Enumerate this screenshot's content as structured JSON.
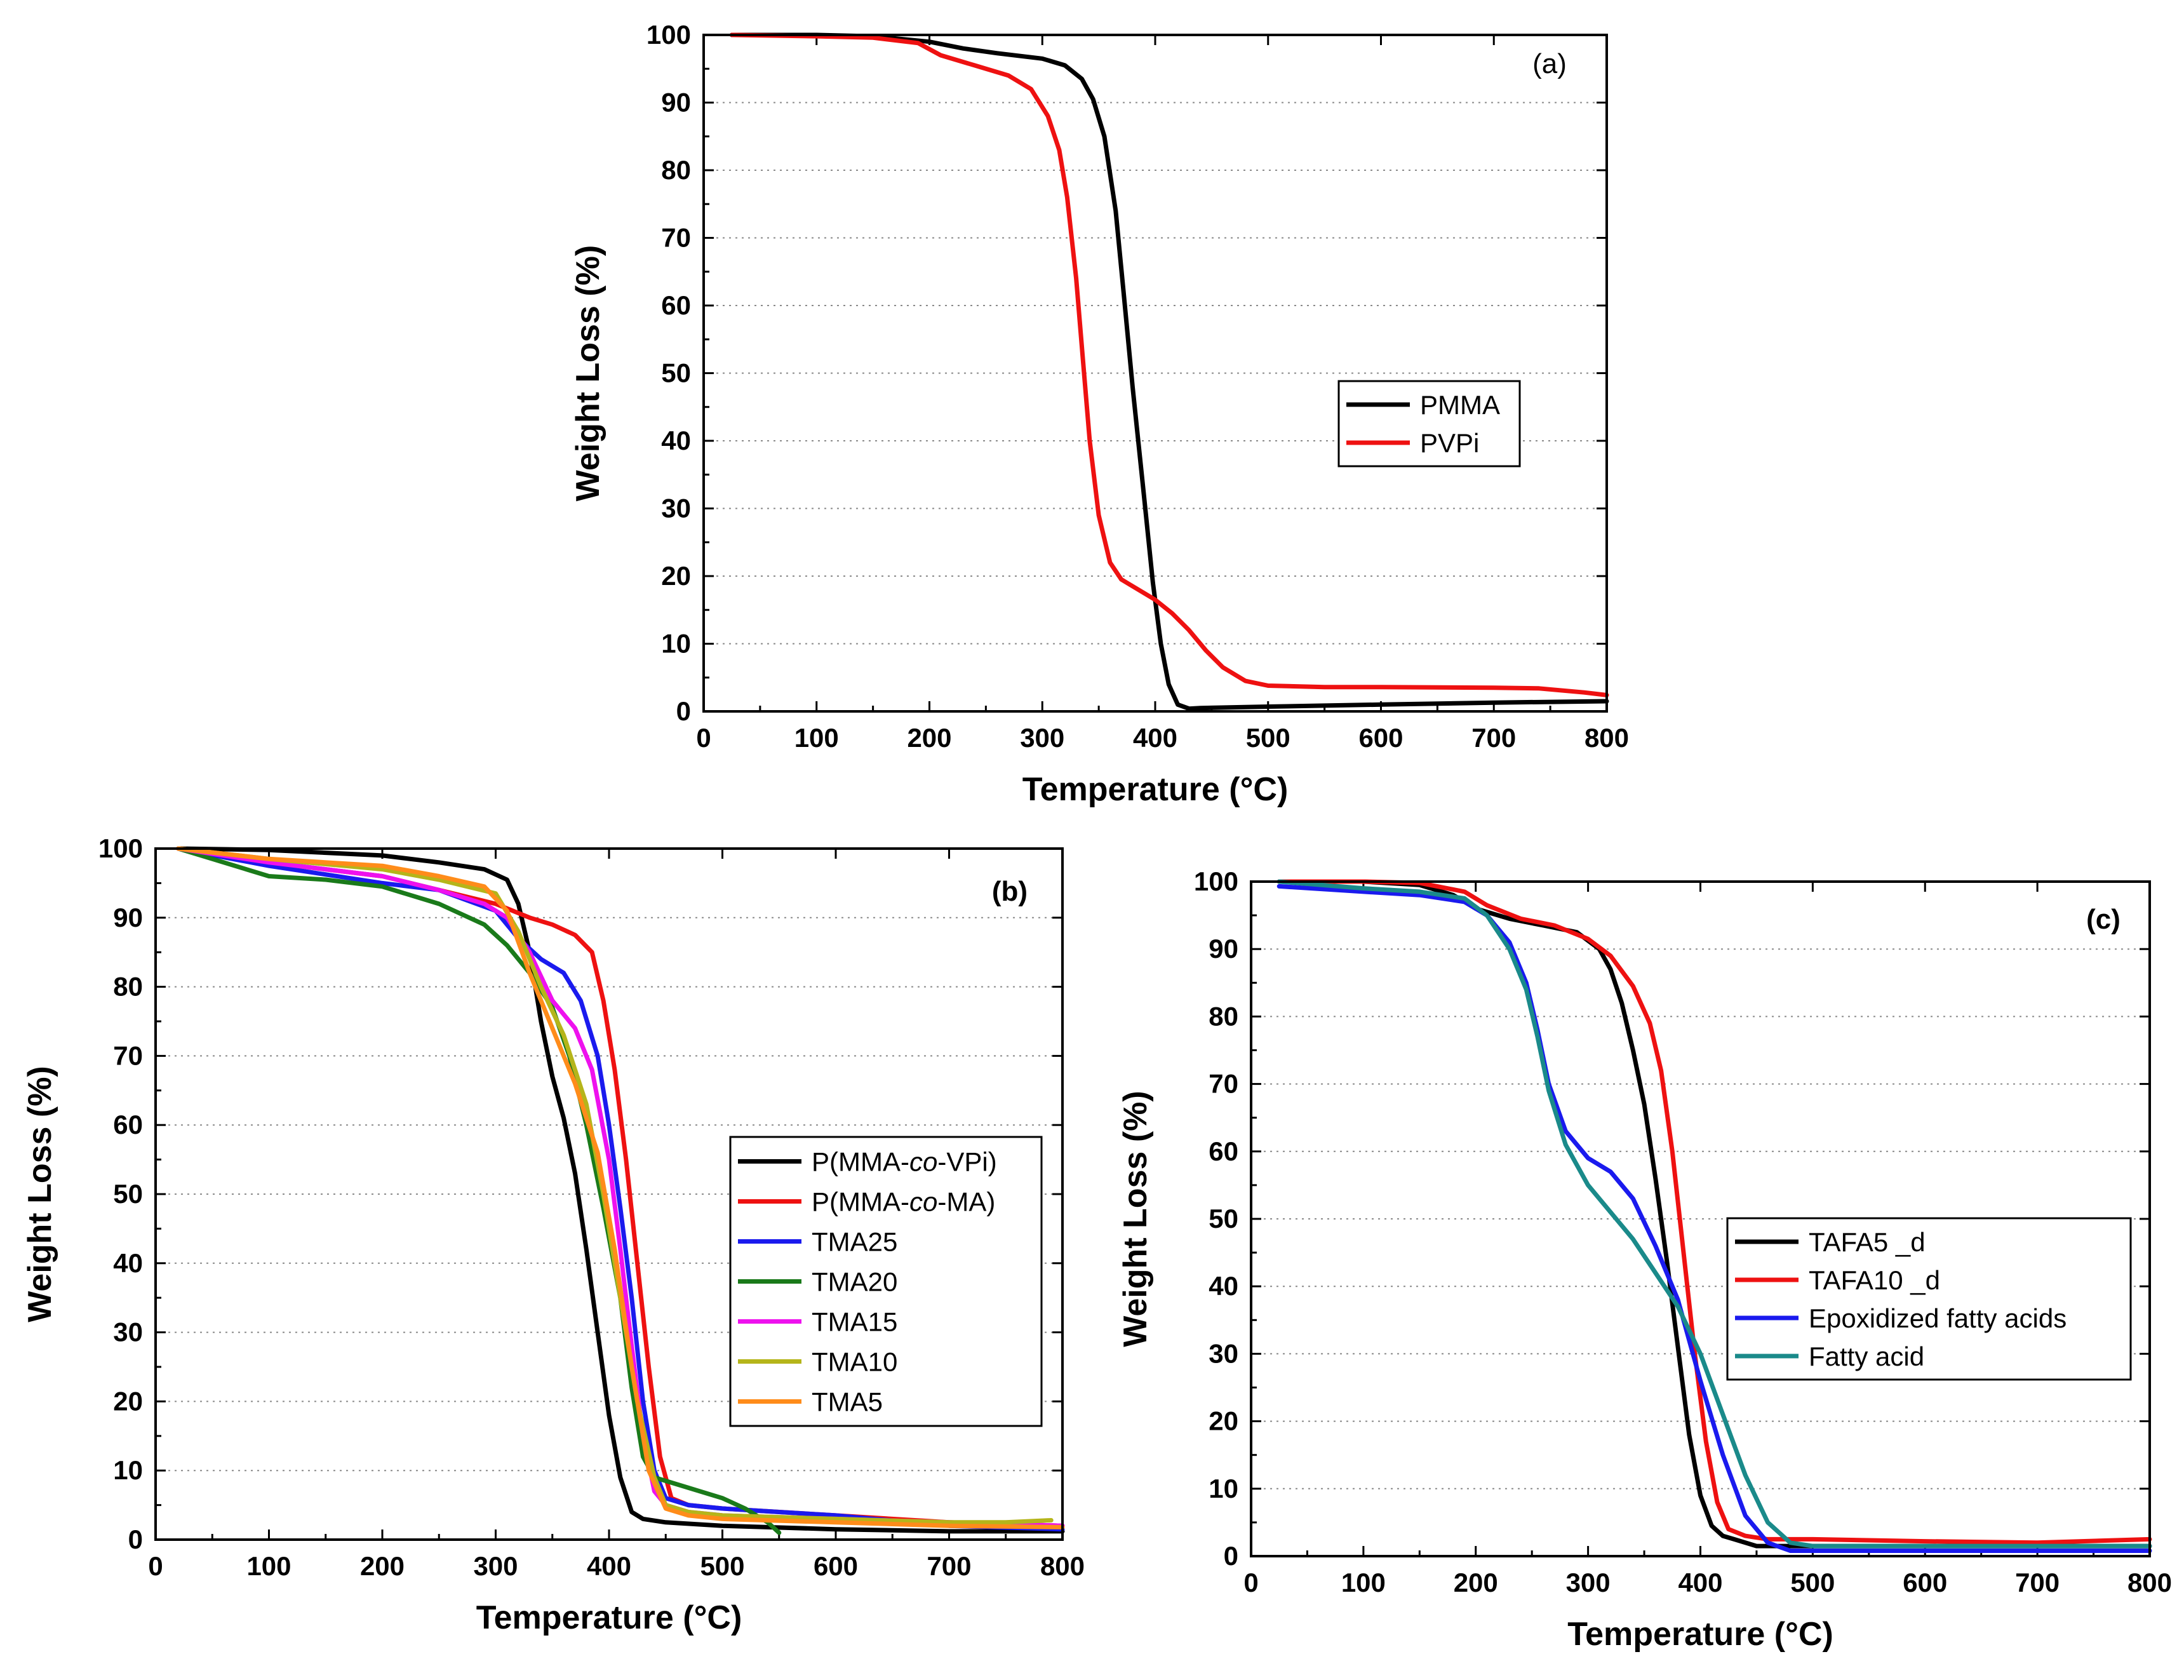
{
  "chart_data": [
    {
      "id": "a",
      "type": "line",
      "panel_label": "(a)",
      "xlabel": "Temperature (°C)",
      "ylabel": "Weight Loss (%)",
      "xlim": [
        0,
        800
      ],
      "ylim": [
        0,
        100
      ],
      "xticks": [
        0,
        100,
        200,
        300,
        400,
        500,
        600,
        700,
        800
      ],
      "yticks": [
        0,
        10,
        20,
        30,
        40,
        50,
        60,
        70,
        80,
        90,
        100
      ],
      "grid": "horizontal dotted",
      "legend_position": "right-middle",
      "series": [
        {
          "name": "PMMA",
          "color": "#000000",
          "x": [
            25,
            100,
            150,
            200,
            230,
            260,
            300,
            320,
            335,
            345,
            355,
            365,
            372,
            380,
            390,
            398,
            405,
            412,
            420,
            430,
            440,
            500,
            600,
            700,
            800
          ],
          "y": [
            100,
            100,
            99.8,
            99,
            98,
            97.3,
            96.5,
            95.5,
            93.5,
            90.5,
            85,
            74,
            62,
            48,
            32,
            19,
            10,
            4,
            1,
            0.4,
            0.5,
            0.7,
            1,
            1.3,
            1.5
          ]
        },
        {
          "name": "PVPi",
          "color": "#ee1111",
          "x": [
            25,
            100,
            150,
            190,
            210,
            240,
            270,
            290,
            305,
            315,
            322,
            330,
            336,
            342,
            350,
            360,
            370,
            385,
            400,
            415,
            430,
            445,
            460,
            480,
            500,
            550,
            600,
            700,
            740,
            780,
            800
          ],
          "y": [
            100,
            99.8,
            99.6,
            98.8,
            97,
            95.5,
            94,
            92,
            88,
            83,
            76,
            64,
            52,
            40,
            29,
            22,
            19.5,
            18,
            16.5,
            14.5,
            12,
            9,
            6.5,
            4.5,
            3.8,
            3.6,
            3.6,
            3.5,
            3.4,
            2.8,
            2.4
          ]
        }
      ]
    },
    {
      "id": "b",
      "type": "line",
      "panel_label": "(b)",
      "xlabel": "Temperature (°C)",
      "ylabel": "Weight Loss (%)",
      "xlim": [
        0,
        800
      ],
      "ylim": [
        0,
        100
      ],
      "xticks": [
        0,
        100,
        200,
        300,
        400,
        500,
        600,
        700,
        800
      ],
      "yticks": [
        0,
        10,
        20,
        30,
        40,
        50,
        60,
        70,
        80,
        90,
        100
      ],
      "grid": "horizontal dotted",
      "legend_position": "right-middle",
      "series": [
        {
          "name_parts": [
            "P(MMA-",
            "co",
            "-VPi)"
          ],
          "color": "#000000",
          "x": [
            20,
            100,
            200,
            250,
            290,
            310,
            320,
            330,
            340,
            350,
            360,
            370,
            380,
            390,
            400,
            410,
            420,
            430,
            450,
            500,
            600,
            700,
            800
          ],
          "y": [
            100,
            99.8,
            99,
            98,
            97,
            95.5,
            92,
            85,
            75,
            67,
            61,
            53,
            42,
            30,
            18,
            9,
            4,
            3,
            2.5,
            2,
            1.5,
            1.2,
            1.2
          ]
        },
        {
          "name_parts": [
            "P(MMA-",
            "co",
            "-MA)"
          ],
          "color": "#ee1111",
          "x": [
            20,
            100,
            200,
            250,
            300,
            330,
            350,
            370,
            385,
            395,
            405,
            415,
            425,
            435,
            445,
            455,
            470,
            500,
            600,
            700,
            800
          ],
          "y": [
            100,
            98,
            96,
            94,
            92,
            90,
            89,
            87.5,
            85,
            78,
            68,
            55,
            40,
            25,
            12,
            6,
            5,
            4.5,
            3.5,
            2.5,
            2
          ]
        },
        {
          "name": "TMA25",
          "color": "#1a1aee",
          "x": [
            20,
            100,
            200,
            250,
            300,
            320,
            340,
            360,
            375,
            390,
            400,
            410,
            420,
            430,
            440,
            450,
            470,
            500,
            550,
            600,
            700,
            800
          ],
          "y": [
            100,
            97.5,
            95,
            94,
            91,
            87,
            84,
            82,
            78,
            70,
            60,
            48,
            35,
            20,
            10,
            6,
            5,
            4.5,
            4,
            3.5,
            2,
            1.5
          ]
        },
        {
          "name": "TMA20",
          "color": "#1a7a1a",
          "x": [
            20,
            50,
            80,
            100,
            150,
            200,
            250,
            290,
            310,
            330,
            350,
            365,
            380,
            395,
            410,
            420,
            430,
            440,
            450,
            470,
            500,
            520,
            540,
            550
          ],
          "y": [
            100,
            98.5,
            97,
            96,
            95.5,
            94.5,
            92,
            89,
            86,
            82,
            77,
            70,
            60,
            48,
            35,
            22,
            12,
            9,
            8.5,
            7.5,
            6,
            4.5,
            2.5,
            1
          ]
        },
        {
          "name": "TMA15",
          "color": "#ee11ee",
          "x": [
            20,
            100,
            200,
            250,
            290,
            310,
            330,
            350,
            370,
            385,
            400,
            410,
            420,
            430,
            440,
            450,
            470,
            500,
            600,
            700,
            800
          ],
          "y": [
            100,
            98,
            96,
            94,
            92,
            90,
            85,
            78,
            74,
            68,
            55,
            42,
            28,
            15,
            7,
            5,
            4,
            3.5,
            3,
            2.5,
            2
          ]
        },
        {
          "name": "TMA10",
          "color": "#b5b51a",
          "x": [
            20,
            100,
            200,
            250,
            300,
            320,
            340,
            360,
            380,
            395,
            410,
            425,
            440,
            450,
            470,
            500,
            600,
            700,
            750,
            790
          ],
          "y": [
            100,
            98.5,
            97,
            95.5,
            93.5,
            88,
            80,
            73,
            63,
            50,
            35,
            20,
            9,
            5,
            4,
            3.5,
            3,
            2.5,
            2.5,
            2.8
          ]
        },
        {
          "name": "TMA5",
          "color": "#ff8c1a",
          "x": [
            20,
            100,
            200,
            250,
            290,
            310,
            330,
            350,
            370,
            390,
            405,
            420,
            435,
            450,
            470,
            500,
            600,
            700,
            800
          ],
          "y": [
            100,
            98.5,
            97.5,
            96,
            94.5,
            91,
            82,
            74,
            66,
            56,
            42,
            25,
            10,
            4.5,
            3.5,
            3,
            2.5,
            2,
            1.8
          ]
        }
      ]
    },
    {
      "id": "c",
      "type": "line",
      "panel_label": "(c)",
      "xlabel": "Temperature (°C)",
      "ylabel": "Weight Loss (%)",
      "xlim": [
        0,
        800
      ],
      "ylim": [
        0,
        100
      ],
      "xticks": [
        0,
        100,
        200,
        300,
        400,
        500,
        600,
        700,
        800
      ],
      "yticks": [
        0,
        10,
        20,
        30,
        40,
        50,
        60,
        70,
        80,
        90,
        100
      ],
      "grid": "horizontal dotted",
      "legend_position": "right-middle",
      "series": [
        {
          "name": "TAFA5 _d",
          "color": "#000000",
          "x": [
            25,
            100,
            150,
            180,
            200,
            230,
            260,
            290,
            310,
            320,
            330,
            340,
            350,
            360,
            370,
            380,
            390,
            400,
            410,
            420,
            430,
            450,
            500,
            600,
            700,
            800
          ],
          "y": [
            100,
            100,
            99.5,
            98,
            96,
            94.5,
            93.5,
            92.5,
            90,
            87,
            82,
            75,
            67,
            56,
            44,
            31,
            18,
            9,
            4.5,
            3,
            2.5,
            1.5,
            1.5,
            1.5,
            1.5,
            1.5
          ]
        },
        {
          "name": "TAFA10 _d",
          "color": "#ee1111",
          "x": [
            25,
            100,
            150,
            190,
            210,
            240,
            270,
            300,
            320,
            340,
            355,
            365,
            375,
            385,
            395,
            405,
            415,
            425,
            440,
            460,
            500,
            600,
            700,
            800
          ],
          "y": [
            100,
            100,
            99.8,
            98.5,
            96.5,
            94.5,
            93.5,
            91.5,
            89,
            84.5,
            79,
            72,
            60,
            45,
            30,
            17,
            8,
            4,
            3,
            2.5,
            2.5,
            2.2,
            2,
            2.5
          ]
        },
        {
          "name": "Epoxidized fatty acids",
          "color": "#1a1aee",
          "x": [
            25,
            100,
            150,
            190,
            210,
            230,
            245,
            255,
            265,
            280,
            300,
            320,
            340,
            360,
            380,
            400,
            420,
            440,
            460,
            480,
            500,
            600,
            700,
            800
          ],
          "y": [
            99.3,
            98.5,
            98,
            97,
            95,
            91,
            85,
            78,
            70,
            63,
            59,
            57,
            53,
            46,
            38,
            26,
            15,
            6,
            2,
            0.8,
            0.8,
            0.8,
            0.8,
            0.8
          ]
        },
        {
          "name": "Fatty acid",
          "color": "#1a8a8a",
          "x": [
            25,
            100,
            150,
            190,
            210,
            230,
            245,
            255,
            265,
            280,
            300,
            320,
            340,
            360,
            380,
            400,
            420,
            440,
            460,
            470,
            480,
            500,
            600,
            700,
            800
          ],
          "y": [
            100,
            99,
            98.5,
            97.5,
            95,
            90,
            84,
            77,
            69,
            61,
            55,
            51,
            47,
            42,
            37,
            30,
            21,
            12,
            5,
            3.5,
            2,
            1.5,
            1.5,
            1.5,
            1.5
          ]
        }
      ]
    }
  ]
}
